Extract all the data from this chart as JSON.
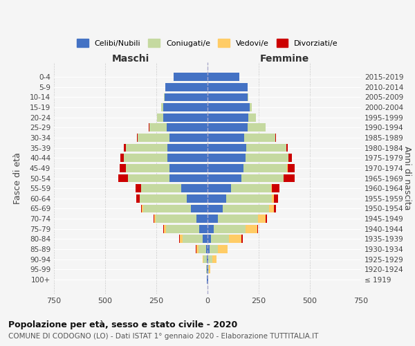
{
  "age_groups": [
    "100+",
    "95-99",
    "90-94",
    "85-89",
    "80-84",
    "75-79",
    "70-74",
    "65-69",
    "60-64",
    "55-59",
    "50-54",
    "45-49",
    "40-44",
    "35-39",
    "30-34",
    "25-29",
    "20-24",
    "15-19",
    "10-14",
    "5-9",
    "0-4"
  ],
  "birth_years": [
    "≤ 1919",
    "1920-1924",
    "1925-1929",
    "1930-1934",
    "1935-1939",
    "1940-1944",
    "1945-1949",
    "1950-1954",
    "1955-1959",
    "1960-1964",
    "1965-1969",
    "1970-1974",
    "1975-1979",
    "1980-1984",
    "1985-1989",
    "1990-1994",
    "1995-1999",
    "2000-2004",
    "2005-2009",
    "2010-2014",
    "2015-2019"
  ],
  "males": {
    "celibi": [
      2,
      2,
      5,
      8,
      25,
      42,
      55,
      80,
      100,
      130,
      185,
      185,
      195,
      195,
      185,
      200,
      215,
      215,
      210,
      205,
      165
    ],
    "coniugati": [
      1,
      4,
      15,
      35,
      95,
      160,
      200,
      235,
      230,
      195,
      205,
      215,
      215,
      205,
      155,
      85,
      30,
      10,
      2,
      1,
      0
    ],
    "vedovi": [
      0,
      2,
      5,
      12,
      15,
      10,
      5,
      5,
      2,
      1,
      0,
      0,
      0,
      0,
      0,
      0,
      0,
      0,
      0,
      0,
      0
    ],
    "divorziati": [
      0,
      0,
      0,
      2,
      2,
      5,
      5,
      5,
      15,
      25,
      45,
      30,
      15,
      8,
      5,
      2,
      0,
      0,
      0,
      0,
      0
    ]
  },
  "females": {
    "nubili": [
      2,
      2,
      5,
      10,
      18,
      32,
      50,
      75,
      90,
      115,
      165,
      175,
      185,
      190,
      180,
      195,
      200,
      205,
      195,
      195,
      155
    ],
    "coniugate": [
      1,
      5,
      20,
      42,
      88,
      155,
      195,
      225,
      225,
      195,
      205,
      215,
      210,
      195,
      150,
      88,
      38,
      12,
      3,
      1,
      0
    ],
    "vedove": [
      0,
      5,
      20,
      45,
      60,
      55,
      40,
      25,
      10,
      5,
      2,
      2,
      1,
      0,
      0,
      0,
      0,
      0,
      0,
      0,
      0
    ],
    "divorziate": [
      0,
      0,
      0,
      2,
      5,
      5,
      5,
      10,
      20,
      35,
      55,
      35,
      15,
      8,
      5,
      2,
      0,
      0,
      0,
      0,
      0
    ]
  },
  "color_celibi": "#4472C4",
  "color_coniugati": "#C5D9A0",
  "color_vedovi": "#FFCC66",
  "color_divorziati": "#CC0000",
  "title": "Popolazione per età, sesso e stato civile - 2020",
  "subtitle": "COMUNE DI CODOGNO (LO) - Dati ISTAT 1° gennaio 2020 - Elaborazione TUTTITALIA.IT",
  "xlabel_left": "Maschi",
  "xlabel_right": "Femmine",
  "ylabel_left": "Fasce di età",
  "ylabel_right": "Anni di nascita",
  "xlim": 750,
  "xticks": [
    750,
    500,
    250,
    0,
    250,
    500,
    750
  ],
  "background_color": "#f5f5f5"
}
